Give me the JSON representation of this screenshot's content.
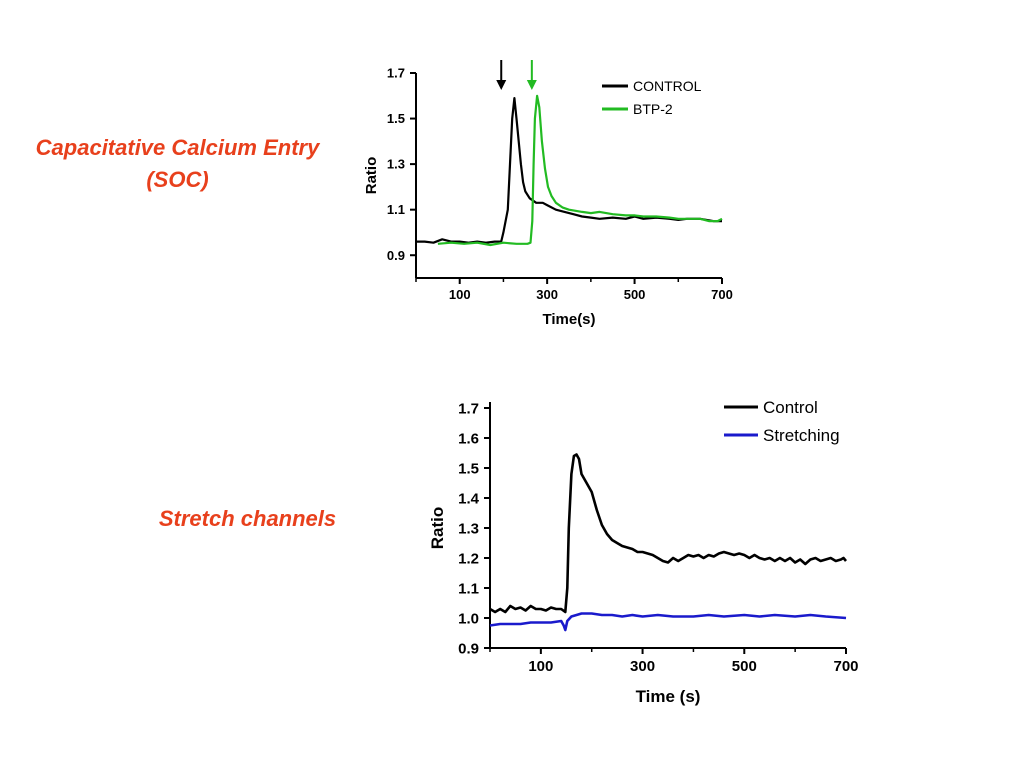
{
  "captions": {
    "top": "Capacitative Calcium Entry (SOC)",
    "bottom": "Stretch channels"
  },
  "chart_data": [
    {
      "type": "line",
      "title": "",
      "xlabel": "Time(s)",
      "ylabel": "Ratio",
      "xlim": [
        0,
        700
      ],
      "ylim": [
        0.8,
        1.7
      ],
      "xticks": [
        100,
        300,
        500,
        700
      ],
      "yticks": [
        0.9,
        1.1,
        1.3,
        1.5,
        1.7
      ],
      "ytick_labels": [
        "0.9",
        "1.1",
        "1.3",
        "1.5",
        "1.7"
      ],
      "grid": false,
      "legend_position": "top-right",
      "annotations": [
        {
          "type": "arrow",
          "x": 195,
          "color": "#000000"
        },
        {
          "type": "arrow",
          "x": 265,
          "color": "#22bb22"
        }
      ],
      "series": [
        {
          "name": "CONTROL",
          "color": "#000000",
          "points": [
            [
              0,
              0.96
            ],
            [
              20,
              0.96
            ],
            [
              40,
              0.955
            ],
            [
              60,
              0.97
            ],
            [
              80,
              0.96
            ],
            [
              100,
              0.96
            ],
            [
              120,
              0.955
            ],
            [
              140,
              0.96
            ],
            [
              160,
              0.955
            ],
            [
              180,
              0.96
            ],
            [
              195,
              0.96
            ],
            [
              200,
              1.0
            ],
            [
              210,
              1.1
            ],
            [
              215,
              1.3
            ],
            [
              220,
              1.5
            ],
            [
              225,
              1.59
            ],
            [
              230,
              1.5
            ],
            [
              235,
              1.4
            ],
            [
              240,
              1.3
            ],
            [
              245,
              1.22
            ],
            [
              250,
              1.18
            ],
            [
              260,
              1.15
            ],
            [
              275,
              1.13
            ],
            [
              290,
              1.13
            ],
            [
              300,
              1.12
            ],
            [
              320,
              1.1
            ],
            [
              340,
              1.09
            ],
            [
              360,
              1.08
            ],
            [
              380,
              1.07
            ],
            [
              400,
              1.065
            ],
            [
              420,
              1.06
            ],
            [
              450,
              1.065
            ],
            [
              480,
              1.06
            ],
            [
              500,
              1.07
            ],
            [
              520,
              1.06
            ],
            [
              550,
              1.065
            ],
            [
              580,
              1.06
            ],
            [
              600,
              1.055
            ],
            [
              620,
              1.06
            ],
            [
              650,
              1.06
            ],
            [
              680,
              1.05
            ],
            [
              700,
              1.05
            ]
          ]
        },
        {
          "name": "BTP-2",
          "color": "#22bb22",
          "points": [
            [
              50,
              0.95
            ],
            [
              80,
              0.955
            ],
            [
              110,
              0.95
            ],
            [
              140,
              0.955
            ],
            [
              170,
              0.945
            ],
            [
              200,
              0.955
            ],
            [
              230,
              0.95
            ],
            [
              255,
              0.95
            ],
            [
              262,
              0.955
            ],
            [
              266,
              1.05
            ],
            [
              269,
              1.3
            ],
            [
              272,
              1.5
            ],
            [
              277,
              1.6
            ],
            [
              282,
              1.55
            ],
            [
              288,
              1.4
            ],
            [
              295,
              1.28
            ],
            [
              302,
              1.2
            ],
            [
              310,
              1.16
            ],
            [
              320,
              1.13
            ],
            [
              335,
              1.11
            ],
            [
              350,
              1.1
            ],
            [
              380,
              1.09
            ],
            [
              400,
              1.085
            ],
            [
              420,
              1.09
            ],
            [
              450,
              1.08
            ],
            [
              480,
              1.075
            ],
            [
              500,
              1.075
            ],
            [
              520,
              1.07
            ],
            [
              550,
              1.07
            ],
            [
              580,
              1.065
            ],
            [
              600,
              1.06
            ],
            [
              620,
              1.06
            ],
            [
              650,
              1.06
            ],
            [
              670,
              1.05
            ],
            [
              690,
              1.05
            ],
            [
              700,
              1.06
            ]
          ]
        }
      ]
    },
    {
      "type": "line",
      "title": "",
      "xlabel": "Time (s)",
      "ylabel": "Ratio",
      "xlim": [
        0,
        700
      ],
      "ylim": [
        0.9,
        1.7
      ],
      "xticks": [
        100,
        300,
        500,
        700
      ],
      "yticks": [
        0.9,
        1.0,
        1.1,
        1.2,
        1.3,
        1.4,
        1.5,
        1.6,
        1.7
      ],
      "ytick_labels": [
        "0.9",
        "1.0",
        "1.1",
        "1.2",
        "1.3",
        "1.4",
        "1.5",
        "1.6",
        "1.7"
      ],
      "grid": false,
      "legend_position": "top-right",
      "series": [
        {
          "name": "Control",
          "color": "#000000",
          "points": [
            [
              0,
              1.03
            ],
            [
              10,
              1.02
            ],
            [
              20,
              1.03
            ],
            [
              30,
              1.02
            ],
            [
              40,
              1.04
            ],
            [
              50,
              1.03
            ],
            [
              60,
              1.035
            ],
            [
              70,
              1.025
            ],
            [
              80,
              1.04
            ],
            [
              90,
              1.03
            ],
            [
              100,
              1.03
            ],
            [
              110,
              1.025
            ],
            [
              120,
              1.035
            ],
            [
              130,
              1.03
            ],
            [
              140,
              1.03
            ],
            [
              148,
              1.02
            ],
            [
              152,
              1.1
            ],
            [
              155,
              1.3
            ],
            [
              160,
              1.48
            ],
            [
              165,
              1.54
            ],
            [
              170,
              1.545
            ],
            [
              175,
              1.53
            ],
            [
              180,
              1.48
            ],
            [
              190,
              1.45
            ],
            [
              200,
              1.42
            ],
            [
              210,
              1.36
            ],
            [
              220,
              1.31
            ],
            [
              230,
              1.28
            ],
            [
              240,
              1.26
            ],
            [
              250,
              1.25
            ],
            [
              260,
              1.24
            ],
            [
              270,
              1.235
            ],
            [
              280,
              1.23
            ],
            [
              290,
              1.22
            ],
            [
              300,
              1.22
            ],
            [
              310,
              1.215
            ],
            [
              320,
              1.21
            ],
            [
              330,
              1.2
            ],
            [
              340,
              1.19
            ],
            [
              350,
              1.185
            ],
            [
              360,
              1.2
            ],
            [
              370,
              1.19
            ],
            [
              380,
              1.2
            ],
            [
              390,
              1.21
            ],
            [
              400,
              1.205
            ],
            [
              410,
              1.21
            ],
            [
              420,
              1.2
            ],
            [
              430,
              1.21
            ],
            [
              440,
              1.205
            ],
            [
              450,
              1.215
            ],
            [
              460,
              1.22
            ],
            [
              470,
              1.215
            ],
            [
              480,
              1.21
            ],
            [
              490,
              1.215
            ],
            [
              500,
              1.21
            ],
            [
              510,
              1.2
            ],
            [
              520,
              1.21
            ],
            [
              530,
              1.2
            ],
            [
              540,
              1.195
            ],
            [
              550,
              1.2
            ],
            [
              560,
              1.19
            ],
            [
              570,
              1.2
            ],
            [
              580,
              1.19
            ],
            [
              590,
              1.2
            ],
            [
              600,
              1.185
            ],
            [
              610,
              1.195
            ],
            [
              620,
              1.18
            ],
            [
              630,
              1.195
            ],
            [
              640,
              1.2
            ],
            [
              650,
              1.19
            ],
            [
              660,
              1.195
            ],
            [
              670,
              1.2
            ],
            [
              680,
              1.19
            ],
            [
              690,
              1.195
            ],
            [
              695,
              1.2
            ],
            [
              700,
              1.19
            ]
          ]
        },
        {
          "name": "Stretching",
          "color": "#1a1acc",
          "points": [
            [
              0,
              0.975
            ],
            [
              20,
              0.98
            ],
            [
              40,
              0.98
            ],
            [
              60,
              0.98
            ],
            [
              80,
              0.985
            ],
            [
              100,
              0.985
            ],
            [
              120,
              0.985
            ],
            [
              140,
              0.99
            ],
            [
              145,
              0.975
            ],
            [
              148,
              0.96
            ],
            [
              152,
              0.99
            ],
            [
              160,
              1.005
            ],
            [
              170,
              1.01
            ],
            [
              180,
              1.015
            ],
            [
              200,
              1.015
            ],
            [
              220,
              1.01
            ],
            [
              240,
              1.01
            ],
            [
              260,
              1.005
            ],
            [
              280,
              1.01
            ],
            [
              300,
              1.005
            ],
            [
              330,
              1.01
            ],
            [
              360,
              1.005
            ],
            [
              400,
              1.005
            ],
            [
              430,
              1.01
            ],
            [
              460,
              1.005
            ],
            [
              500,
              1.01
            ],
            [
              530,
              1.005
            ],
            [
              560,
              1.01
            ],
            [
              600,
              1.005
            ],
            [
              630,
              1.01
            ],
            [
              660,
              1.005
            ],
            [
              700,
              1.0
            ]
          ]
        }
      ]
    }
  ]
}
